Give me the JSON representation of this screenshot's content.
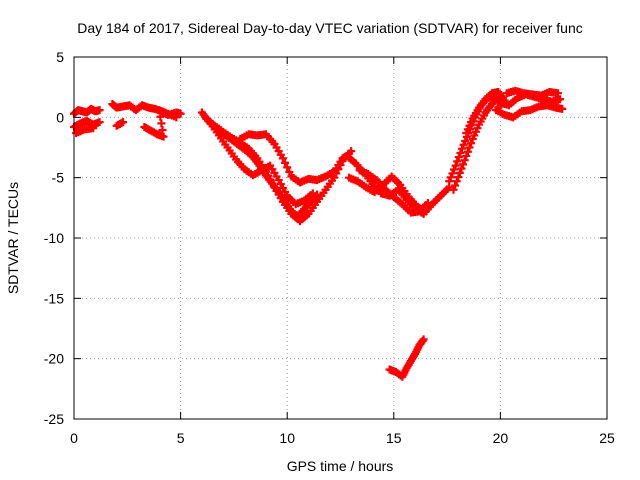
{
  "chart_data": {
    "type": "scatter",
    "title": "Day 184 of 2017, Sidereal Day-to-day VTEC variation (SDTVAR) for receiver func",
    "xlabel": "GPS time / hours",
    "ylabel": "SDTVAR / TECUs",
    "xlim": [
      0,
      25
    ],
    "ylim": [
      -25,
      5
    ],
    "xticks": [
      "0",
      "5",
      "10",
      "15",
      "20",
      "25"
    ],
    "yticks": [
      "5",
      "0",
      "-5",
      "-10",
      "-15",
      "-20",
      "-25"
    ],
    "grid": true,
    "marker": "plus",
    "series": [
      {
        "name": "SDTVAR",
        "color": "#ff0000",
        "x": [
          0.0,
          0.2,
          0.4,
          0.6,
          0.8,
          1.0,
          1.2,
          0.0,
          0.3,
          0.6,
          0.9,
          1.2,
          0.1,
          0.5,
          0.9,
          1.8,
          2.0,
          2.3,
          2.6,
          2.9,
          3.2,
          3.5,
          3.8,
          4.1,
          4.4,
          4.8,
          5.0,
          2.0,
          2.3,
          3.3,
          3.6,
          3.9,
          4.2,
          4.0,
          4.4,
          4.8,
          6.0,
          6.3,
          6.6,
          6.9,
          7.2,
          7.5,
          7.8,
          8.1,
          8.4,
          8.7,
          9.0,
          9.3,
          9.6,
          9.9,
          10.2,
          10.5,
          10.8,
          11.1,
          11.4,
          6.2,
          6.6,
          7.0,
          7.4,
          7.8,
          8.2,
          8.6,
          9.0,
          9.4,
          9.8,
          10.2,
          10.6,
          11.0,
          11.4,
          11.8,
          12.2,
          12.6,
          13.0,
          6.4,
          6.8,
          7.2,
          7.6,
          8.0,
          8.4,
          8.8,
          9.2,
          9.6,
          10.0,
          10.4,
          10.8,
          11.2,
          7.8,
          8.2,
          8.6,
          9.0,
          9.4,
          9.8,
          10.2,
          10.6,
          11.0,
          11.4,
          11.8,
          12.2,
          12.6,
          12.8,
          13.2,
          13.6,
          14.0,
          14.4,
          14.8,
          15.2,
          15.6,
          16.0,
          16.4,
          16.8,
          17.2,
          17.6,
          13.4,
          13.8,
          14.2,
          14.6,
          15.0,
          15.4,
          15.8,
          16.2,
          16.6,
          12.9,
          13.3,
          13.7,
          14.1,
          14.5,
          14.9,
          15.3,
          15.7,
          16.1,
          16.5,
          17.6,
          17.9,
          18.2,
          18.5,
          18.8,
          19.1,
          19.4,
          19.7,
          20.0,
          17.8,
          18.1,
          18.4,
          18.7,
          19.0,
          19.3,
          19.6,
          19.9,
          18.4,
          18.7,
          19.0,
          19.3,
          19.6,
          19.9,
          20.2,
          19.8,
          20.2,
          20.6,
          21.0,
          21.4,
          21.8,
          22.2,
          22.6,
          22.9,
          20.0,
          20.4,
          20.8,
          21.2,
          21.6,
          22.0,
          22.4,
          22.8,
          20.3,
          20.7,
          21.1,
          21.5,
          21.9,
          22.3,
          22.7,
          14.8,
          15.1,
          15.4,
          15.6,
          15.8,
          16.0,
          16.2,
          16.4
        ],
        "y": [
          0.3,
          0.6,
          0.5,
          0.4,
          0.7,
          0.5,
          0.6,
          -0.8,
          -0.5,
          -0.3,
          -0.6,
          -0.4,
          -1.3,
          -1.0,
          -0.9,
          1.1,
          0.8,
          0.9,
          1.0,
          0.6,
          1.0,
          0.8,
          0.7,
          0.5,
          0.2,
          0.4,
          0.3,
          -0.7,
          -0.4,
          -0.8,
          -1.1,
          -1.4,
          -1.6,
          0.6,
          0.3,
          0.0,
          0.4,
          -0.3,
          -0.8,
          -1.2,
          -1.6,
          -2.0,
          -2.4,
          -2.8,
          -3.3,
          -4.0,
          -4.8,
          -5.5,
          -6.2,
          -7.0,
          -7.8,
          -8.2,
          -7.6,
          -7.0,
          -6.4,
          -0.1,
          -0.7,
          -1.2,
          -1.7,
          -2.1,
          -2.6,
          -3.4,
          -4.5,
          -5.8,
          -7.0,
          -8.0,
          -8.6,
          -8.0,
          -7.0,
          -6.0,
          -5.0,
          -3.6,
          -2.8,
          -0.5,
          -1.5,
          -2.5,
          -3.5,
          -4.3,
          -4.8,
          -4.4,
          -4.0,
          -5.2,
          -6.5,
          -7.2,
          -6.9,
          -6.3,
          -1.8,
          -1.4,
          -1.5,
          -1.4,
          -2.2,
          -3.4,
          -4.9,
          -5.4,
          -5.1,
          -5.2,
          -4.9,
          -4.5,
          -3.4,
          -3.2,
          -3.8,
          -4.6,
          -5.5,
          -6.3,
          -6.5,
          -6.0,
          -6.8,
          -7.6,
          -8.0,
          -7.2,
          -6.5,
          -5.8,
          -4.4,
          -4.7,
          -5.2,
          -6.0,
          -6.6,
          -7.2,
          -7.9,
          -7.8,
          -7.1,
          -5.0,
          -5.3,
          -5.8,
          -6.2,
          -5.6,
          -4.9,
          -5.6,
          -6.6,
          -7.4,
          -7.8,
          -5.3,
          -4.0,
          -2.6,
          -1.3,
          0.0,
          1.0,
          1.6,
          1.8,
          1.5,
          -6.0,
          -4.6,
          -3.2,
          -1.8,
          -0.6,
          0.4,
          1.1,
          1.7,
          -1.3,
          -0.1,
          0.8,
          1.5,
          2.0,
          2.1,
          1.4,
          0.6,
          0.2,
          0.0,
          0.5,
          0.6,
          0.9,
          1.0,
          0.8,
          0.7,
          1.2,
          1.0,
          1.6,
          1.9,
          1.7,
          1.5,
          1.3,
          1.5,
          2.0,
          2.2,
          2.0,
          1.9,
          1.8,
          2.1,
          2.0,
          -20.9,
          -21.1,
          -21.5,
          -20.8,
          -20.2,
          -19.6,
          -18.9,
          -18.4
        ]
      }
    ]
  }
}
